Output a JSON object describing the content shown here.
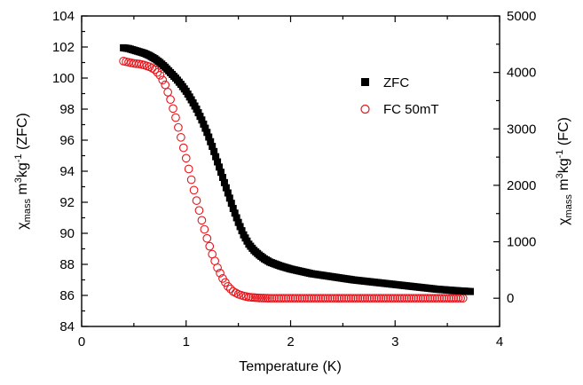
{
  "chart_data": {
    "type": "scatter",
    "title": "",
    "xlabel": "Temperature (K)",
    "ylabel_left": {
      "symbol": "χ",
      "sub": "mass",
      "text": " m",
      "sup1": "3",
      "text2": "kg",
      "sup2": "-1",
      "suffix": " (ZFC)"
    },
    "ylabel_right": {
      "symbol": "χ",
      "sub": "mass",
      "text": " m",
      "sup1": "3",
      "text2": "kg",
      "sup2": "-1",
      "suffix": " (FC)"
    },
    "xlim": [
      0,
      4
    ],
    "ylim_left": [
      84,
      104
    ],
    "ylim_right": [
      -500,
      5000
    ],
    "x_ticks": [
      "0",
      "1",
      "2",
      "3",
      "4"
    ],
    "y_left_ticks": [
      "84",
      "86",
      "88",
      "90",
      "92",
      "94",
      "96",
      "98",
      "100",
      "102",
      "104"
    ],
    "y_right_ticks": [
      "0",
      "1000",
      "2000",
      "3000",
      "4000",
      "5000"
    ],
    "legend_position": "upper-right-inside",
    "series": [
      {
        "name": "ZFC",
        "axis": "left",
        "marker": "filled-square",
        "color": "#000000",
        "points": [
          [
            0.4,
            101.95
          ],
          [
            0.45,
            101.9
          ],
          [
            0.5,
            101.8
          ],
          [
            0.55,
            101.7
          ],
          [
            0.6,
            101.6
          ],
          [
            0.65,
            101.45
          ],
          [
            0.7,
            101.25
          ],
          [
            0.75,
            101.0
          ],
          [
            0.8,
            100.7
          ],
          [
            0.85,
            100.35
          ],
          [
            0.9,
            100.0
          ],
          [
            0.95,
            99.6
          ],
          [
            1.0,
            99.15
          ],
          [
            1.05,
            98.6
          ],
          [
            1.1,
            98.0
          ],
          [
            1.15,
            97.3
          ],
          [
            1.2,
            96.5
          ],
          [
            1.25,
            95.6
          ],
          [
            1.3,
            94.6
          ],
          [
            1.35,
            93.6
          ],
          [
            1.4,
            92.6
          ],
          [
            1.45,
            91.6
          ],
          [
            1.5,
            90.7
          ],
          [
            1.55,
            89.9
          ],
          [
            1.6,
            89.3
          ],
          [
            1.65,
            88.9
          ],
          [
            1.7,
            88.6
          ],
          [
            1.75,
            88.35
          ],
          [
            1.8,
            88.15
          ],
          [
            1.9,
            87.9
          ],
          [
            2.0,
            87.7
          ],
          [
            2.2,
            87.4
          ],
          [
            2.4,
            87.2
          ],
          [
            2.6,
            87.0
          ],
          [
            2.8,
            86.85
          ],
          [
            3.0,
            86.7
          ],
          [
            3.2,
            86.55
          ],
          [
            3.4,
            86.4
          ],
          [
            3.6,
            86.3
          ],
          [
            3.72,
            86.25
          ]
        ]
      },
      {
        "name": "FC 50mT",
        "axis": "right",
        "marker": "open-circle",
        "color": "#e8141b",
        "points": [
          [
            0.4,
            4200
          ],
          [
            0.45,
            4180
          ],
          [
            0.5,
            4160
          ],
          [
            0.55,
            4150
          ],
          [
            0.6,
            4130
          ],
          [
            0.65,
            4100
          ],
          [
            0.7,
            4050
          ],
          [
            0.75,
            3950
          ],
          [
            0.8,
            3780
          ],
          [
            0.85,
            3520
          ],
          [
            0.9,
            3200
          ],
          [
            0.95,
            2850
          ],
          [
            1.0,
            2480
          ],
          [
            1.05,
            2100
          ],
          [
            1.1,
            1730
          ],
          [
            1.15,
            1380
          ],
          [
            1.2,
            1060
          ],
          [
            1.25,
            780
          ],
          [
            1.3,
            540
          ],
          [
            1.35,
            350
          ],
          [
            1.4,
            210
          ],
          [
            1.45,
            120
          ],
          [
            1.5,
            70
          ],
          [
            1.55,
            40
          ],
          [
            1.6,
            20
          ],
          [
            1.7,
            5
          ],
          [
            1.8,
            0
          ],
          [
            2.0,
            0
          ],
          [
            2.4,
            0
          ],
          [
            2.8,
            0
          ],
          [
            3.2,
            0
          ],
          [
            3.65,
            0
          ]
        ]
      }
    ]
  }
}
